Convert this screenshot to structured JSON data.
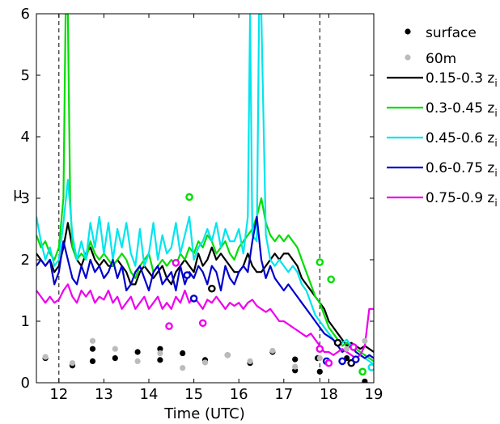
{
  "chart_data": {
    "type": "line",
    "xlabel": "Time (UTC)",
    "ylabel": "μ",
    "xlim": [
      11.5,
      19
    ],
    "ylim": [
      0,
      6
    ],
    "x_ticks": [
      "12",
      "13",
      "14",
      "15",
      "16",
      "17",
      "18",
      "19"
    ],
    "y_ticks": [
      "0",
      "1",
      "2",
      "3",
      "4",
      "5",
      "6"
    ],
    "grid": false,
    "legend_position": "outside-right",
    "vertical_lines": [
      12.0,
      17.8
    ],
    "series": [
      {
        "name": "0.15-0.3 z",
        "sub": "i",
        "color": "#000000",
        "x": [
          11.5,
          11.6,
          11.7,
          11.8,
          11.9,
          12.0,
          12.1,
          12.2,
          12.3,
          12.4,
          12.5,
          12.6,
          12.7,
          12.8,
          12.9,
          13.0,
          13.1,
          13.2,
          13.3,
          13.4,
          13.5,
          13.6,
          13.7,
          13.8,
          13.9,
          14.0,
          14.1,
          14.2,
          14.3,
          14.4,
          14.5,
          14.6,
          14.7,
          14.8,
          14.9,
          15.0,
          15.1,
          15.2,
          15.3,
          15.4,
          15.5,
          15.6,
          15.7,
          15.8,
          15.9,
          16.0,
          16.1,
          16.2,
          16.3,
          16.4,
          16.5,
          16.6,
          16.7,
          16.8,
          16.9,
          17.0,
          17.1,
          17.2,
          17.3,
          17.4,
          17.5,
          17.6,
          17.7,
          17.8,
          17.9,
          18.0,
          18.1,
          18.2,
          18.3,
          18.4,
          18.5,
          18.6,
          18.7,
          18.8,
          18.9,
          19.0
        ],
        "y": [
          2.1,
          2.0,
          1.9,
          2.0,
          1.8,
          1.9,
          2.2,
          2.6,
          2.2,
          2.0,
          1.9,
          2.1,
          2.2,
          2.0,
          1.9,
          2.0,
          1.9,
          1.9,
          2.0,
          1.9,
          1.8,
          1.6,
          1.6,
          1.8,
          1.9,
          1.8,
          1.7,
          1.8,
          1.9,
          1.7,
          1.6,
          1.8,
          1.9,
          2.0,
          1.9,
          1.8,
          2.1,
          1.9,
          2.0,
          2.2,
          2.0,
          2.1,
          2.0,
          1.9,
          1.8,
          1.8,
          1.9,
          2.1,
          1.9,
          1.8,
          1.8,
          1.9,
          2.0,
          2.1,
          2.0,
          2.1,
          2.1,
          2.0,
          1.9,
          1.7,
          1.6,
          1.5,
          1.4,
          1.3,
          1.2,
          1.0,
          0.9,
          0.8,
          0.7,
          0.6,
          0.65,
          0.6,
          0.55,
          0.6,
          0.55,
          0.5
        ]
      },
      {
        "name": "0.3-0.45 z",
        "sub": "i",
        "color": "#00dd00",
        "x": [
          11.5,
          11.6,
          11.7,
          11.8,
          11.9,
          12.0,
          12.1,
          12.15,
          12.2,
          12.25,
          12.3,
          12.4,
          12.5,
          12.6,
          12.7,
          12.8,
          12.9,
          13.0,
          13.1,
          13.2,
          13.3,
          13.4,
          13.5,
          13.6,
          13.7,
          13.8,
          13.9,
          14.0,
          14.1,
          14.2,
          14.3,
          14.4,
          14.5,
          14.6,
          14.7,
          14.8,
          14.9,
          15.0,
          15.1,
          15.2,
          15.3,
          15.4,
          15.5,
          15.6,
          15.7,
          15.8,
          15.9,
          16.0,
          16.1,
          16.2,
          16.3,
          16.4,
          16.5,
          16.6,
          16.7,
          16.8,
          16.9,
          17.0,
          17.1,
          17.2,
          17.3,
          17.4,
          17.5,
          17.6,
          17.7,
          17.8,
          17.9,
          18.0,
          18.1,
          18.2,
          18.3,
          18.4,
          18.5,
          18.6,
          18.7,
          18.8,
          18.9,
          19.0
        ],
        "y": [
          2.4,
          2.2,
          2.3,
          2.1,
          2.0,
          2.2,
          3.0,
          6.0,
          6.0,
          3.0,
          2.2,
          2.0,
          2.1,
          2.0,
          2.3,
          2.1,
          2.0,
          2.1,
          2.0,
          1.9,
          2.0,
          2.1,
          2.0,
          1.8,
          1.7,
          1.9,
          2.0,
          2.1,
          1.8,
          1.9,
          2.0,
          1.9,
          2.0,
          1.9,
          2.1,
          2.0,
          2.2,
          2.1,
          2.3,
          2.2,
          2.4,
          2.3,
          2.1,
          2.2,
          2.3,
          2.1,
          2.0,
          2.2,
          2.3,
          2.4,
          2.5,
          2.7,
          3.0,
          2.6,
          2.4,
          2.3,
          2.4,
          2.3,
          2.4,
          2.3,
          2.2,
          2.0,
          1.8,
          1.6,
          1.4,
          1.3,
          1.1,
          0.9,
          0.8,
          0.7,
          0.6,
          0.65,
          0.6,
          0.55,
          0.5,
          0.45,
          0.4,
          0.35
        ]
      },
      {
        "name": "0.45-0.6 z",
        "sub": "i",
        "color": "#00e5ee",
        "x": [
          11.5,
          11.6,
          11.7,
          11.8,
          11.9,
          12.0,
          12.1,
          12.2,
          12.3,
          12.4,
          12.5,
          12.6,
          12.7,
          12.8,
          12.9,
          13.0,
          13.1,
          13.2,
          13.3,
          13.4,
          13.5,
          13.6,
          13.7,
          13.8,
          13.9,
          14.0,
          14.1,
          14.2,
          14.3,
          14.4,
          14.5,
          14.6,
          14.7,
          14.8,
          14.9,
          15.0,
          15.1,
          15.2,
          15.3,
          15.4,
          15.5,
          15.6,
          15.7,
          15.8,
          15.9,
          16.0,
          16.1,
          16.2,
          16.25,
          16.3,
          16.4,
          16.45,
          16.5,
          16.6,
          16.7,
          16.8,
          16.9,
          17.0,
          17.1,
          17.2,
          17.3,
          17.4,
          17.5,
          17.6,
          17.7,
          17.8,
          17.9,
          18.0,
          18.1,
          18.2,
          18.3,
          18.4,
          18.5,
          18.6,
          18.7,
          18.8,
          18.9,
          19.0
        ],
        "y": [
          2.7,
          2.3,
          2.0,
          2.2,
          1.9,
          2.0,
          2.6,
          3.3,
          2.4,
          2.0,
          2.3,
          2.0,
          2.6,
          2.2,
          2.7,
          2.1,
          2.6,
          2.0,
          2.5,
          2.2,
          2.6,
          2.1,
          1.9,
          2.5,
          1.9,
          2.1,
          2.6,
          2.0,
          2.4,
          2.1,
          2.2,
          2.6,
          2.1,
          2.4,
          2.7,
          2.0,
          2.2,
          2.3,
          2.5,
          2.3,
          2.6,
          2.2,
          2.5,
          2.3,
          2.3,
          2.5,
          2.1,
          2.7,
          6.0,
          2.4,
          2.3,
          6.0,
          6.0,
          2.4,
          2.0,
          1.9,
          2.0,
          1.9,
          1.8,
          1.9,
          1.8,
          1.6,
          1.5,
          1.3,
          1.1,
          1.0,
          0.9,
          0.8,
          0.7,
          0.6,
          0.65,
          0.7,
          0.6,
          0.5,
          0.45,
          0.4,
          0.35,
          0.3
        ]
      },
      {
        "name": "0.6-0.75 z",
        "sub": "i",
        "color": "#0000cd",
        "x": [
          11.5,
          11.6,
          11.7,
          11.8,
          11.9,
          12.0,
          12.1,
          12.2,
          12.3,
          12.4,
          12.5,
          12.6,
          12.7,
          12.8,
          12.9,
          13.0,
          13.1,
          13.2,
          13.3,
          13.4,
          13.5,
          13.6,
          13.7,
          13.8,
          13.9,
          14.0,
          14.1,
          14.2,
          14.3,
          14.4,
          14.5,
          14.6,
          14.7,
          14.8,
          14.9,
          15.0,
          15.1,
          15.2,
          15.3,
          15.4,
          15.5,
          15.6,
          15.7,
          15.8,
          15.9,
          16.0,
          16.1,
          16.2,
          16.3,
          16.4,
          16.5,
          16.6,
          16.7,
          16.8,
          16.9,
          17.0,
          17.1,
          17.2,
          17.3,
          17.4,
          17.5,
          17.6,
          17.7,
          17.8,
          17.9,
          18.0,
          18.1,
          18.2,
          18.3,
          18.4,
          18.5,
          18.6,
          18.7,
          18.8,
          18.9,
          19.0
        ],
        "y": [
          1.9,
          2.0,
          1.9,
          2.0,
          1.6,
          1.8,
          2.3,
          2.0,
          1.7,
          1.6,
          1.9,
          1.7,
          2.0,
          1.8,
          1.9,
          1.7,
          1.8,
          2.0,
          1.7,
          1.9,
          1.5,
          1.6,
          1.8,
          1.9,
          1.7,
          1.5,
          1.8,
          1.9,
          1.6,
          1.7,
          1.8,
          1.5,
          1.9,
          1.6,
          1.8,
          1.7,
          1.9,
          1.8,
          1.6,
          1.9,
          1.8,
          1.5,
          1.9,
          1.7,
          1.6,
          1.8,
          1.9,
          1.8,
          2.3,
          2.7,
          2.0,
          1.7,
          1.9,
          1.7,
          1.6,
          1.5,
          1.6,
          1.5,
          1.4,
          1.3,
          1.2,
          1.1,
          1.0,
          0.9,
          0.8,
          0.75,
          0.7,
          0.6,
          0.5,
          0.55,
          0.6,
          0.5,
          0.45,
          0.4,
          0.45,
          0.4
        ]
      },
      {
        "name": "0.75-0.9 z",
        "sub": "i",
        "color": "#ee00ee",
        "x": [
          11.5,
          11.6,
          11.7,
          11.8,
          11.9,
          12.0,
          12.1,
          12.2,
          12.3,
          12.4,
          12.5,
          12.6,
          12.7,
          12.8,
          12.9,
          13.0,
          13.1,
          13.2,
          13.3,
          13.4,
          13.5,
          13.6,
          13.7,
          13.8,
          13.9,
          14.0,
          14.1,
          14.2,
          14.3,
          14.4,
          14.5,
          14.6,
          14.7,
          14.8,
          14.9,
          15.0,
          15.1,
          15.2,
          15.3,
          15.4,
          15.5,
          15.6,
          15.7,
          15.8,
          15.9,
          16.0,
          16.1,
          16.2,
          16.3,
          16.4,
          16.5,
          16.6,
          16.7,
          16.8,
          16.9,
          17.0,
          17.1,
          17.2,
          17.3,
          17.4,
          17.5,
          17.6,
          17.7,
          17.8,
          17.9,
          18.0,
          18.1,
          18.2,
          18.3,
          18.4,
          18.5,
          18.6,
          18.7,
          18.8,
          18.9,
          19.0
        ],
        "y": [
          1.5,
          1.4,
          1.3,
          1.4,
          1.3,
          1.35,
          1.5,
          1.6,
          1.4,
          1.3,
          1.5,
          1.4,
          1.5,
          1.3,
          1.4,
          1.35,
          1.5,
          1.3,
          1.4,
          1.2,
          1.3,
          1.4,
          1.2,
          1.3,
          1.4,
          1.2,
          1.3,
          1.4,
          1.2,
          1.3,
          1.2,
          1.4,
          1.3,
          1.5,
          1.3,
          1.4,
          1.3,
          1.2,
          1.35,
          1.3,
          1.4,
          1.3,
          1.2,
          1.3,
          1.25,
          1.3,
          1.2,
          1.3,
          1.35,
          1.25,
          1.2,
          1.15,
          1.2,
          1.1,
          1.0,
          1.0,
          0.95,
          0.9,
          0.85,
          0.8,
          0.75,
          0.8,
          0.7,
          0.6,
          0.5,
          0.5,
          0.45,
          0.5,
          0.55,
          0.5,
          0.45,
          0.4,
          0.45,
          0.6,
          1.2,
          1.2
        ]
      }
    ],
    "scatter_series": [
      {
        "name": "surface",
        "color": "#000000",
        "points": [
          [
            11.7,
            0.4
          ],
          [
            12.3,
            0.28
          ],
          [
            12.75,
            0.35
          ],
          [
            12.75,
            0.55
          ],
          [
            13.25,
            0.4
          ],
          [
            13.75,
            0.5
          ],
          [
            14.25,
            0.37
          ],
          [
            14.25,
            0.55
          ],
          [
            14.75,
            0.48
          ],
          [
            15.25,
            0.37
          ],
          [
            15.75,
            0.45
          ],
          [
            16.25,
            0.32
          ],
          [
            16.75,
            0.5
          ],
          [
            17.25,
            0.2
          ],
          [
            17.25,
            0.38
          ],
          [
            17.75,
            0.4
          ],
          [
            17.8,
            0.18
          ],
          [
            18.4,
            0.4
          ],
          [
            18.8,
            0.02
          ]
        ]
      },
      {
        "name": "60m",
        "color": "#bbbbbb",
        "points": [
          [
            11.7,
            0.42
          ],
          [
            12.3,
            0.32
          ],
          [
            12.75,
            0.68
          ],
          [
            13.25,
            0.55
          ],
          [
            13.75,
            0.35
          ],
          [
            14.25,
            0.48
          ],
          [
            14.75,
            0.24
          ],
          [
            15.25,
            0.33
          ],
          [
            15.75,
            0.45
          ],
          [
            16.25,
            0.35
          ],
          [
            16.75,
            0.52
          ],
          [
            17.25,
            0.26
          ],
          [
            17.8,
            0.4
          ],
          [
            18.4,
            0.55
          ],
          [
            18.8,
            0.68
          ]
        ]
      }
    ],
    "ring_series": [
      {
        "series_index": 0,
        "color": "#000000",
        "points": [
          [
            15.4,
            1.53
          ],
          [
            18.2,
            0.65
          ],
          [
            18.5,
            0.32
          ]
        ]
      },
      {
        "series_index": 1,
        "color": "#00dd00",
        "points": [
          [
            14.9,
            3.02
          ],
          [
            17.8,
            1.96
          ],
          [
            18.05,
            1.68
          ],
          [
            18.75,
            0.18
          ]
        ]
      },
      {
        "series_index": 2,
        "color": "#00e5ee",
        "points": [
          [
            18.95,
            0.25
          ]
        ]
      },
      {
        "series_index": 3,
        "color": "#0000cd",
        "points": [
          [
            14.85,
            1.75
          ],
          [
            15.0,
            1.37
          ],
          [
            17.95,
            0.35
          ],
          [
            18.3,
            0.35
          ],
          [
            18.6,
            0.38
          ]
        ]
      },
      {
        "series_index": 4,
        "color": "#ee00ee",
        "points": [
          [
            14.6,
            1.95
          ],
          [
            14.45,
            0.92
          ],
          [
            15.2,
            0.97
          ],
          [
            17.8,
            0.55
          ],
          [
            18.0,
            0.32
          ],
          [
            18.55,
            0.58
          ]
        ]
      }
    ]
  }
}
